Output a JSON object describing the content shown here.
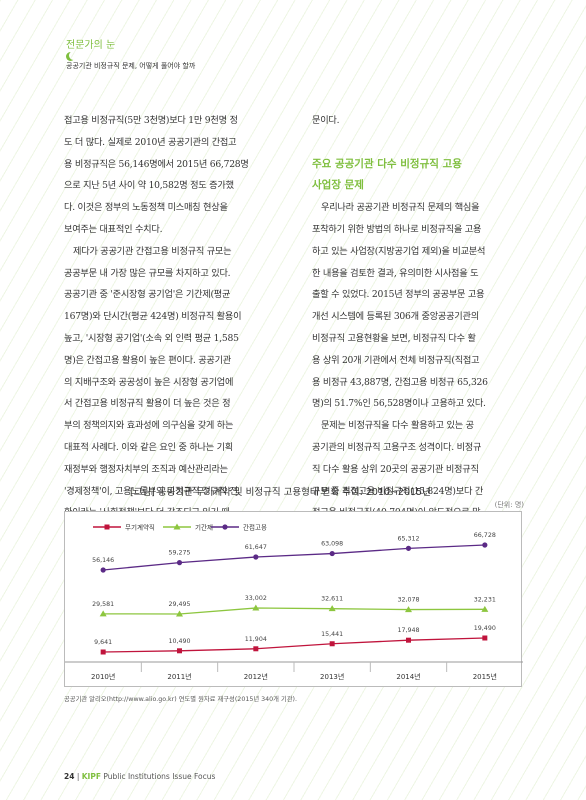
{
  "header": {
    "section": "전문가의 눈",
    "subtitle": "공공기관 비정규직 문제, 어떻게 풀어야 할까"
  },
  "body_left": [
    "접고용 비정규직(5만 3천명)보다 1만 9천명 정",
    "도 더 많다. 실제로 2010년 공공기관의 간접고",
    "용 비정규직은 56,146명에서 2015년 66,728명",
    "으로 지난 5년 사이 약 10,582명 정도 증가했",
    "다. 이것은 정부의 노동정책 미스매칭 현상을",
    "보여주는 대표적인 수치다.",
    "제다가 공공기관 간접고용 비정규직 규모는",
    "공공부문 내 가장 많은 규모를 차지하고 있다.",
    "공공기관 중 '준시장형 공기업'은 기간제(평균",
    "167명)와 단시간(평균 424명) 비정규직 활용이",
    "높고, '시장형 공기업'(소속 외 인력 평균 1,585",
    "명)은 간접고용 활용이 높은 편이다. 공공기관",
    "의 지배구조와 공공성이 높은 시장형 공기업에",
    "서 간접고용 비정규직 활용이 더 높은 것은 정",
    "부의 정책의지와 효과성에 의구심을 갖게 하는",
    "대표적 사례다. 이와 같은 요인 중 하나는 기획",
    "재정부와 행정자치부의 조직과 예산관리라는",
    "'경제정책'이, 고용노동부의 비정규직 정규직 전",
    "환이라는 '사회정책'보다 더 강조되고 있기 때"
  ],
  "body_right_top": [
    "문이다."
  ],
  "section_title": [
    "주요 공공기관 다수 비정규직 고용",
    "사업장 문제"
  ],
  "body_right": [
    "우리나라 공공기관 비정규직 문제의 핵심을",
    "포착하기 위한 방법의 하나로 비정규직을 고용",
    "하고 있는 사업장(지방공기업 제외)을 비교분석",
    "한 내용을 검토한 결과, 유의미한 시사점을 도",
    "출할 수 있었다. 2015년 정부의 공공부문 고용",
    "개선 시스템에 등록된 306개 중앙공공기관의",
    "비정규직 고용현황을 보면, 비정규직 다수 활",
    "용 상위 20개 기관에서 전체 비정규직(직접고",
    "용 비정규 43,887명, 간접고용 비정규 65,326",
    "명)의 51.7%인 56,528명이나 고용하고 있다.",
    "문제는 비정규직을 다수 활용하고 있는 공",
    "공기관의 비정규직 고용구조 성격이다. 비정규",
    "직 다수 활용 상위 20곳의 공공기관 비정규직",
    "규모 중 직접고용 비정규직(15,824명)보다 간",
    "접고용 비정규직(40,704명)이 압도적으로 많"
  ],
  "figure": {
    "title": "[그림] 공공기관 무기계약 및 비정규직 고용형태 변화 추이: 2010~2015년",
    "unit": "(단위: 명)"
  },
  "chart_data": {
    "type": "line",
    "categories": [
      "2010년",
      "2011년",
      "2012년",
      "2013년",
      "2014년",
      "2015년"
    ],
    "series": [
      {
        "name": "무기계약직",
        "color": "#c0143c",
        "marker": "square",
        "values": [
          9641,
          10490,
          11904,
          15441,
          17948,
          19490
        ],
        "labels": [
          "9,641",
          "10,490",
          "11,904",
          "15,441",
          "17,948",
          "19,490"
        ]
      },
      {
        "name": "기간제",
        "color": "#8dc63f",
        "marker": "triangle",
        "values": [
          29581,
          29495,
          33002,
          32611,
          32078,
          32231
        ],
        "labels": [
          "29,581",
          "29,495",
          "33,002",
          "32,611",
          "32,078",
          "32,231"
        ]
      },
      {
        "name": "간접고용",
        "color": "#5b2a86",
        "marker": "circle",
        "values": [
          56146,
          59275,
          61647,
          63098,
          65312,
          66728
        ],
        "labels": [
          "56,146",
          "59,275",
          "61,647",
          "63,098",
          "65,312",
          "66,728"
        ]
      }
    ]
  },
  "source": "공공기관 알리오(http://www.alio.go.kr) 연도별 원자료 재구성(2015년 340개 기관).",
  "footer": {
    "page": "24",
    "brand": "KIPF",
    "publication": "Public Institutions Issue Focus"
  }
}
